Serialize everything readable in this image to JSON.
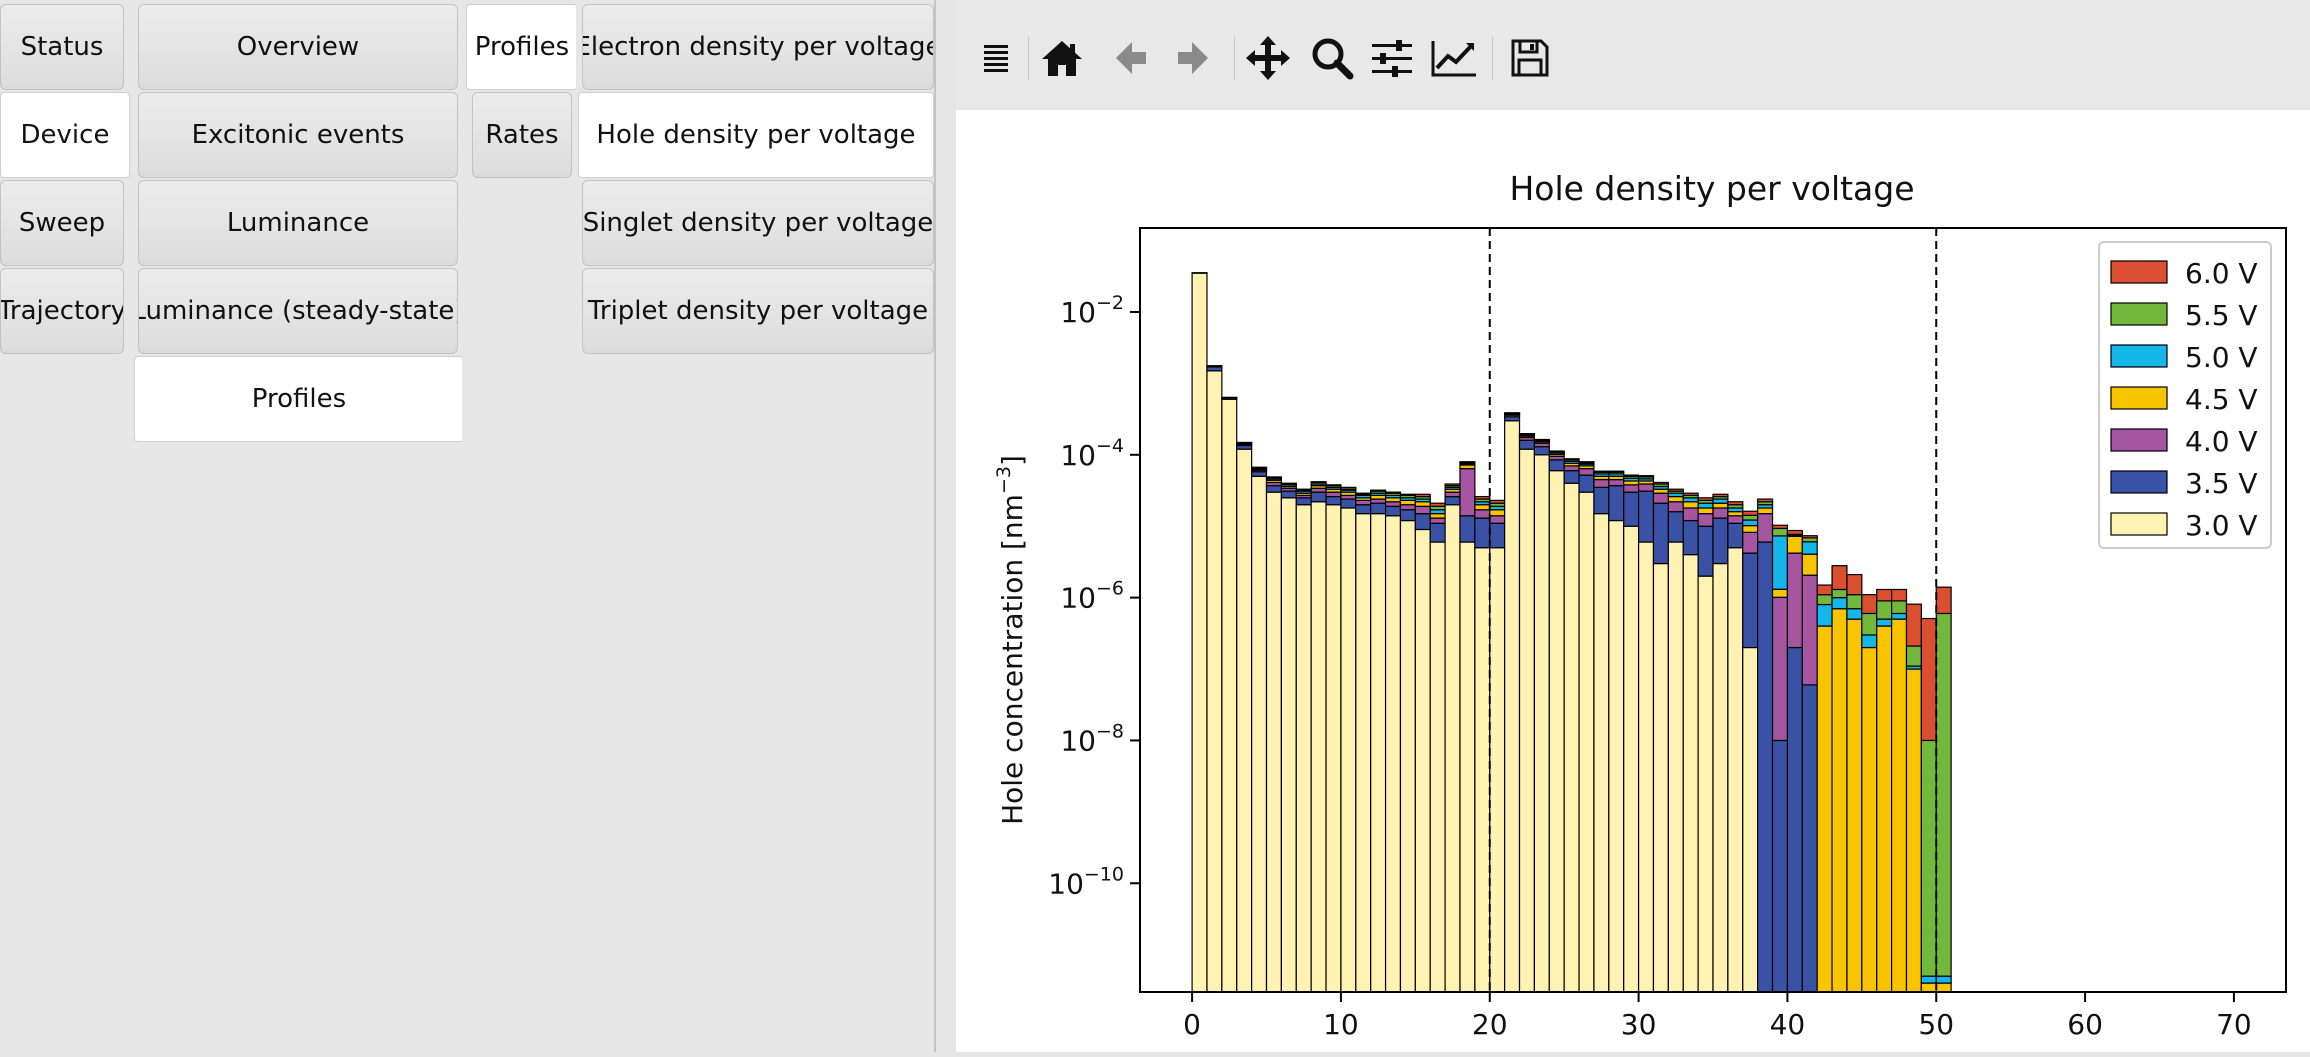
{
  "col1": {
    "tabs": [
      "Status",
      "Device",
      "Sweep",
      "Trajectory"
    ],
    "selected": 1
  },
  "col2": {
    "tabs": [
      "Overview",
      "Excitonic events",
      "Luminance",
      "Luminance (steady-state)",
      "Profiles"
    ],
    "selected": 4
  },
  "col3": {
    "tabs": [
      "Profiles",
      "Rates"
    ],
    "selected": 0
  },
  "col4": {
    "tabs": [
      "Electron density per voltage",
      "Hole density per voltage",
      "Singlet density per voltage",
      "Triplet density per voltage"
    ],
    "selected": 1
  },
  "toolbar": {
    "icons": [
      "menu-icon",
      "home-icon",
      "back-arrow-icon",
      "forward-arrow-icon",
      "pan-icon",
      "zoom-icon",
      "configure-subplots-icon",
      "edit-axis-icon",
      "save-icon"
    ]
  },
  "chart_data": {
    "type": "bar",
    "stacked": true,
    "title": "Hole density per voltage",
    "ylabel_main": "Hole concentration [nm",
    "ylabel_sup": "−3",
    "ylabel_close": "]",
    "xlabel": "",
    "yscale": "log",
    "xlim": [
      -3.5,
      73.5
    ],
    "ylim": [
      3e-12,
      0.15
    ],
    "xticks": [
      0,
      10,
      20,
      30,
      40,
      50,
      60,
      70
    ],
    "yticks": [
      {
        "value": 0.01,
        "base": "10",
        "exp": "−2"
      },
      {
        "value": 0.0001,
        "base": "10",
        "exp": "−4"
      },
      {
        "value": 1e-06,
        "base": "10",
        "exp": "−6"
      },
      {
        "value": 1e-08,
        "base": "10",
        "exp": "−8"
      },
      {
        "value": 1e-10,
        "base": "10",
        "exp": "−10"
      }
    ],
    "vlines": [
      20,
      50
    ],
    "bin_width": 1,
    "x": [
      0,
      1,
      2,
      3,
      4,
      5,
      6,
      7,
      8,
      9,
      10,
      11,
      12,
      13,
      14,
      15,
      16,
      17,
      18,
      19,
      20,
      21,
      22,
      23,
      24,
      25,
      26,
      27,
      28,
      29,
      30,
      31,
      32,
      33,
      34,
      35,
      36,
      37,
      38,
      39,
      40,
      41,
      42,
      43,
      44,
      45,
      46,
      47,
      48,
      49,
      50
    ],
    "legend_position": "top-right",
    "series": [
      {
        "name": "3.0 V",
        "color": "#fff2b3",
        "values": [
          0.035,
          0.0015,
          0.0006,
          0.00012,
          5e-05,
          3e-05,
          2.5e-05,
          2e-05,
          2.2e-05,
          2e-05,
          1.8e-05,
          1.5e-05,
          1.5e-05,
          1.4e-05,
          1.2e-05,
          9e-06,
          6e-06,
          2e-05,
          6e-06,
          5e-06,
          5e-06,
          0.0003,
          0.00012,
          0.0001,
          6e-05,
          4e-05,
          3e-05,
          1.5e-05,
          1.2e-05,
          1e-05,
          6e-06,
          3e-06,
          6e-06,
          4e-06,
          2e-06,
          3e-06,
          5e-06,
          2e-07,
          1e-12,
          1e-12,
          1e-12,
          1e-12,
          1e-12,
          1e-12,
          1e-12,
          1e-12,
          1e-12,
          1e-12,
          1e-12,
          1e-12,
          1e-12
        ]
      },
      {
        "name": "3.5 V",
        "color": "#3a52a5",
        "values": [
          0.0005,
          0.0002,
          3e-05,
          1.5e-05,
          8e-06,
          7e-06,
          6e-06,
          5e-06,
          8e-06,
          6e-06,
          6e-06,
          5e-06,
          6e-06,
          5e-06,
          5e-06,
          6e-06,
          5e-06,
          6e-06,
          8e-06,
          8e-06,
          6e-06,
          4e-05,
          4e-05,
          3e-05,
          2.5e-05,
          2e-05,
          2.2e-05,
          2e-05,
          2.5e-05,
          2e-05,
          2.5e-05,
          1.8e-05,
          1e-05,
          8e-06,
          8e-06,
          1e-05,
          6e-06,
          4e-06,
          6e-06,
          1e-08,
          2e-07,
          6e-08,
          1e-12,
          1e-12,
          1e-12,
          1e-12,
          1e-12,
          1e-12,
          1e-12,
          1e-12,
          1e-12
        ]
      },
      {
        "name": "4.0 V",
        "color": "#a656a0",
        "values": [
          0.0001,
          5e-05,
          8e-06,
          5e-06,
          3e-06,
          4e-06,
          3e-06,
          2e-06,
          4e-06,
          4e-06,
          3e-06,
          3e-06,
          3e-06,
          3e-06,
          3e-06,
          4e-06,
          2e-06,
          4e-06,
          5e-05,
          4e-06,
          3e-06,
          2e-05,
          1.5e-05,
          1.5e-05,
          1e-05,
          1e-05,
          1.2e-05,
          1e-05,
          8e-06,
          8e-06,
          8e-06,
          8e-06,
          6e-06,
          6e-06,
          5e-06,
          5e-06,
          3e-06,
          4e-06,
          9e-06,
          1e-06,
          4e-06,
          2e-06,
          1e-12,
          1e-12,
          1e-12,
          1e-12,
          1e-12,
          1e-12,
          1e-12,
          1e-12,
          1e-12
        ]
      },
      {
        "name": "4.5 V",
        "color": "#f8c400",
        "values": [
          5e-05,
          2e-05,
          4e-06,
          3e-06,
          2e-06,
          3e-06,
          2e-06,
          2e-06,
          3e-06,
          3e-06,
          3e-06,
          2e-06,
          3e-06,
          3e-06,
          3e-06,
          3e-06,
          2e-06,
          3e-06,
          8e-06,
          3e-06,
          3e-06,
          1e-05,
          8e-06,
          7e-06,
          6e-06,
          6e-06,
          6e-06,
          5e-06,
          5e-06,
          5e-06,
          4e-06,
          4e-06,
          4e-06,
          4e-06,
          3e-06,
          3e-06,
          2e-06,
          2e-06,
          3e-06,
          3e-07,
          3e-06,
          2e-06,
          4e-07,
          7e-07,
          5e-07,
          2e-07,
          4e-07,
          5e-07,
          1e-07,
          1e-12,
          1e-12
        ]
      },
      {
        "name": "5.0 V",
        "color": "#15b6ea",
        "values": [
          3e-05,
          1.5e-05,
          3e-06,
          2e-06,
          2e-06,
          2e-06,
          2e-06,
          2e-06,
          2e-06,
          2e-06,
          2e-06,
          2e-06,
          2e-06,
          2e-06,
          2e-06,
          2e-06,
          2e-06,
          2e-06,
          3e-06,
          2e-06,
          2e-06,
          8e-06,
          6e-06,
          5e-06,
          5e-06,
          5e-06,
          4e-06,
          4e-06,
          4e-06,
          4e-06,
          3e-06,
          3e-06,
          3e-06,
          3e-06,
          3e-06,
          3e-06,
          2e-06,
          2e-06,
          2e-06,
          6e-06,
          3e-07,
          2e-06,
          4e-07,
          3e-07,
          2e-07,
          1e-07,
          1e-07,
          1e-07,
          1e-08,
          1e-12,
          1e-12
        ]
      },
      {
        "name": "5.5 V",
        "color": "#72b83c",
        "values": [
          2e-05,
          1e-05,
          2e-06,
          2e-06,
          1e-06,
          2e-06,
          1e-06,
          1e-06,
          2e-06,
          2e-06,
          1e-06,
          1e-06,
          2e-06,
          2e-06,
          2e-06,
          2e-06,
          2e-06,
          2e-06,
          3e-06,
          2e-06,
          2e-06,
          6e-06,
          5e-06,
          4e-06,
          4e-06,
          4e-06,
          3e-06,
          3e-06,
          3e-06,
          3e-06,
          3e-06,
          3e-06,
          2e-06,
          2e-06,
          2e-06,
          2e-06,
          2e-06,
          2e-06,
          2e-06,
          2e-06,
          2e-07,
          8e-07,
          3e-07,
          3e-07,
          4e-07,
          3e-07,
          4e-07,
          3e-07,
          1e-07,
          1e-08,
          6e-07
        ]
      },
      {
        "name": "6.0 V",
        "color": "#d94f30",
        "values": [
          1e-05,
          1e-05,
          2e-06,
          2e-06,
          1e-06,
          1e-06,
          1e-06,
          1e-06,
          1e-06,
          1e-06,
          2e-06,
          1e-06,
          1e-06,
          1e-06,
          1e-06,
          2e-06,
          2e-06,
          2e-06,
          2e-06,
          2e-06,
          2e-06,
          4e-06,
          4e-06,
          3e-06,
          3e-06,
          3e-06,
          3e-06,
          2e-06,
          2e-06,
          2e-06,
          2e-06,
          2e-06,
          2e-06,
          2e-06,
          2e-06,
          2e-06,
          2e-06,
          2e-06,
          2e-06,
          1e-06,
          1e-06,
          5e-07,
          4e-07,
          1.5e-06,
          1e-06,
          5e-07,
          4e-07,
          4e-07,
          6e-07,
          5e-07,
          8e-07
        ]
      }
    ]
  }
}
